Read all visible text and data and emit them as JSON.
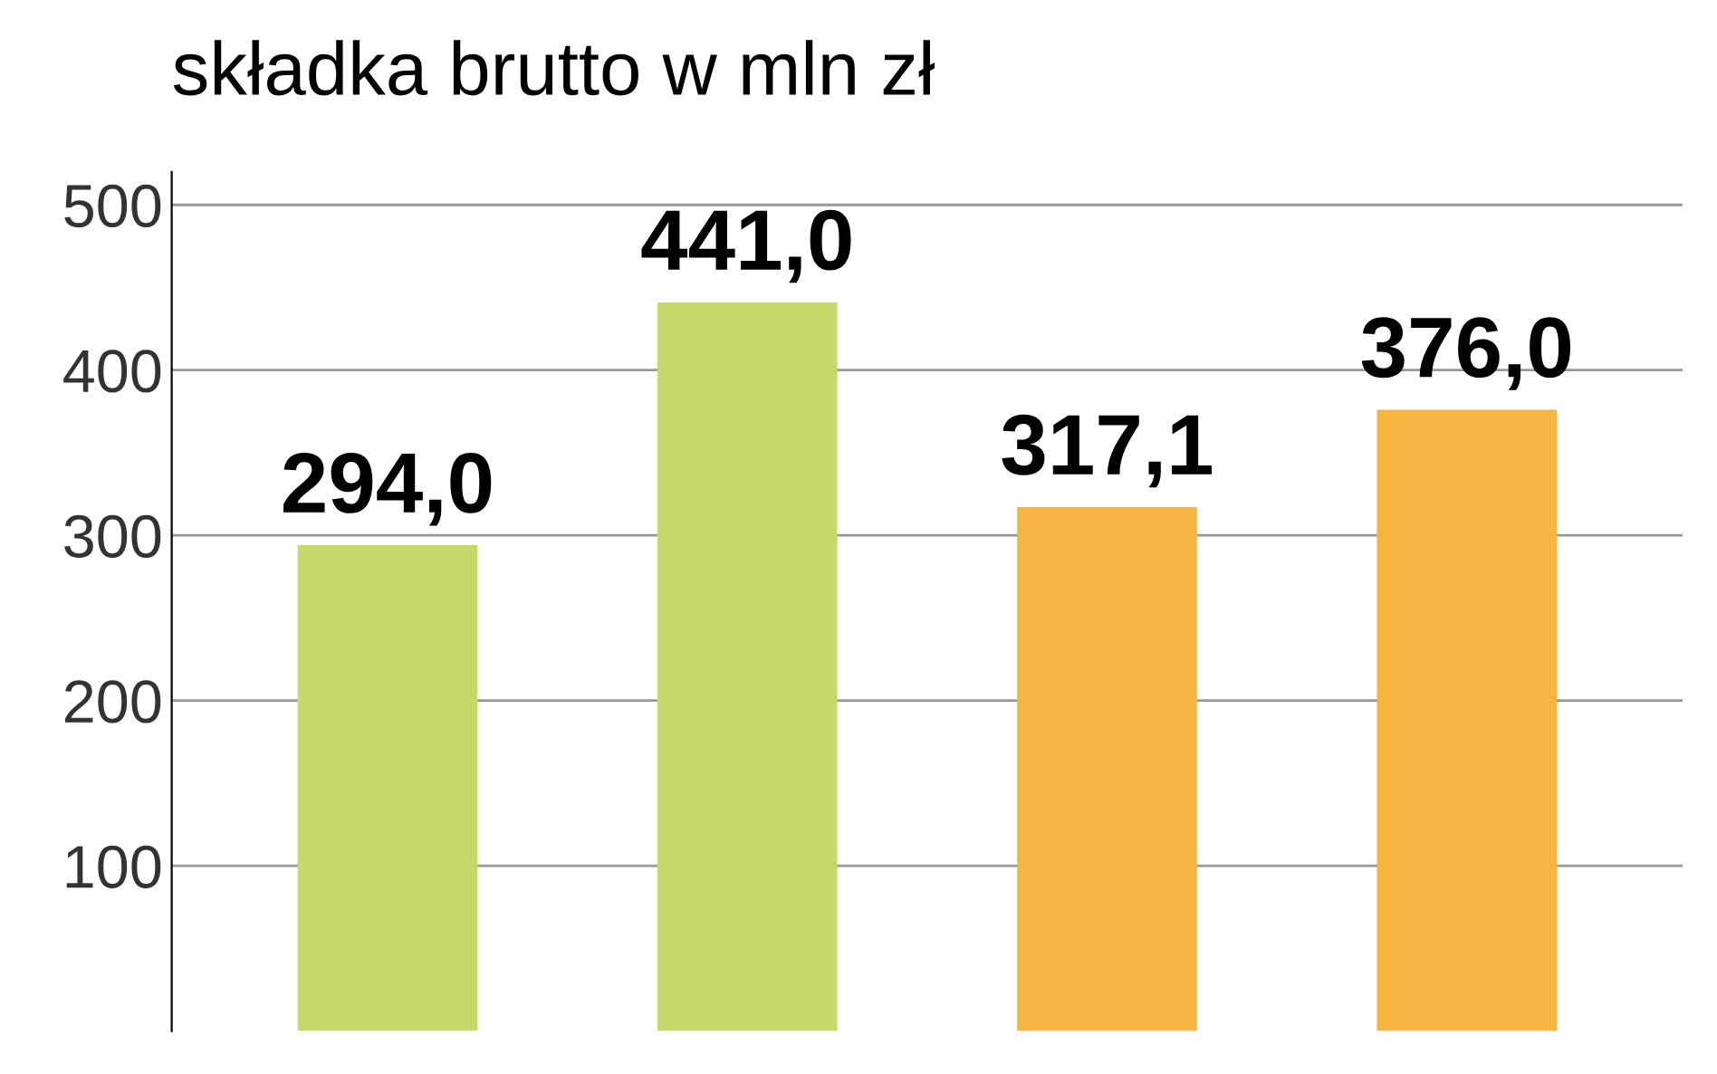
{
  "chart_data": {
    "type": "bar",
    "title": "składka brutto w mln zł",
    "categories": [
      null,
      null,
      null,
      null
    ],
    "values": [
      294.0,
      441.0,
      317.1,
      376.0
    ],
    "colors": [
      "#c5d96a",
      "#c5d96a",
      "#f5b540",
      "#f5b540"
    ],
    "value_labels": [
      "294,0",
      "441,0",
      "317,1",
      "376,0"
    ],
    "ylim": [
      0,
      520
    ],
    "yticks": [
      100,
      200,
      300,
      400,
      500
    ],
    "grid": "y"
  }
}
